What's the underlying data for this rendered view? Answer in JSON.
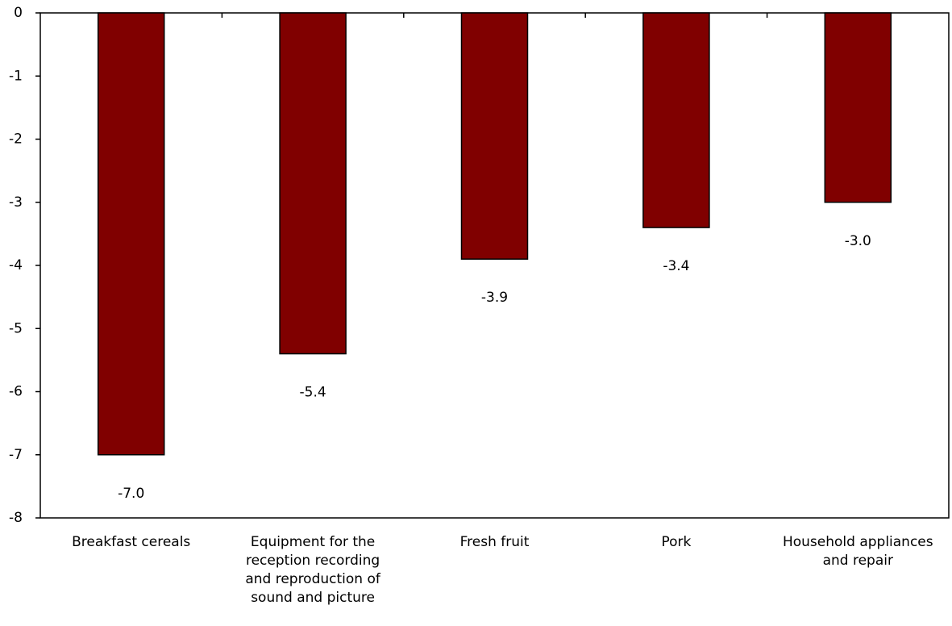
{
  "chart_data": {
    "type": "bar",
    "categories": [
      "Breakfast cereals",
      "Equipment for the reception recording and reproduction of sound and picture",
      "Fresh fruit",
      "Pork",
      "Household appliances and repair"
    ],
    "values": [
      -7.0,
      -5.4,
      -3.9,
      -3.4,
      -3.0
    ],
    "value_labels": [
      "-7.0",
      "-5.4",
      "-3.9",
      "-3.4",
      "-3.0"
    ],
    "color": "#800000",
    "ylim": [
      -8,
      0
    ],
    "yticks": [
      0,
      -1,
      -2,
      -3,
      -4,
      -5,
      -6,
      -7,
      -8
    ],
    "grid": false
  }
}
